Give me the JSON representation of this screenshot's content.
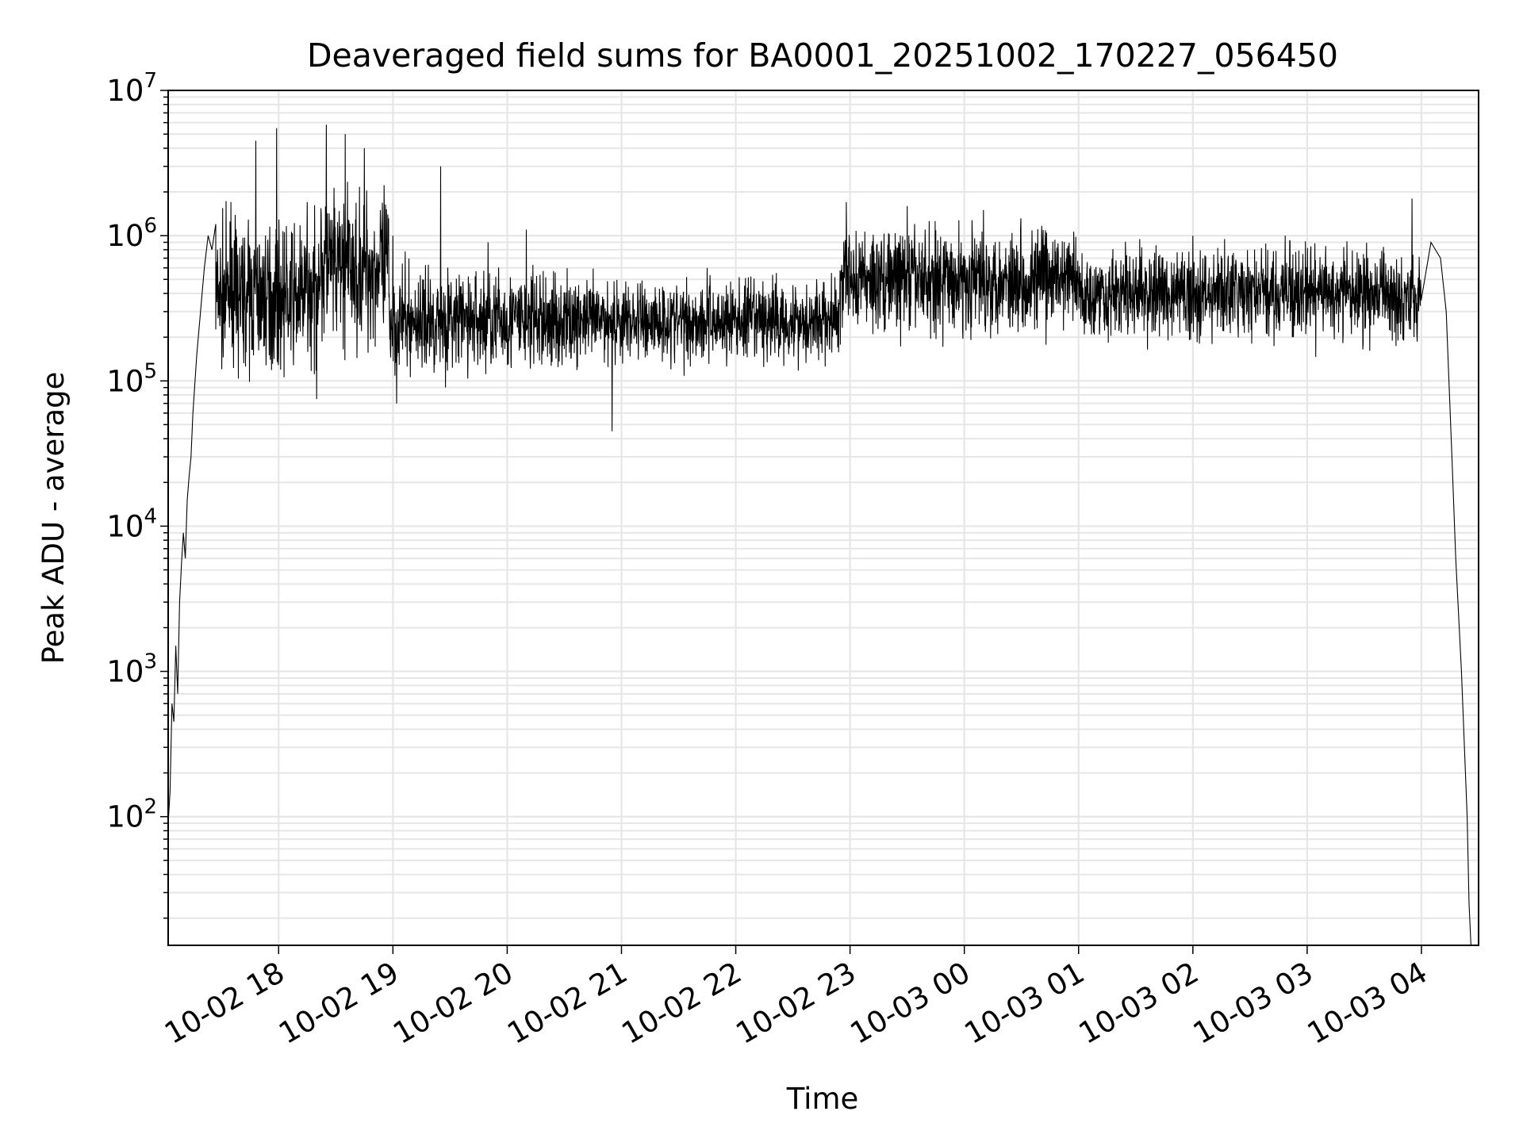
{
  "chart_data": {
    "type": "line",
    "title": "Deaveraged field sums for BA0001_20251002_170227_056450",
    "xlabel": "Time",
    "ylabel": "Peak ADU - average",
    "yscale": "log",
    "ylim": [
      13,
      10000000
    ],
    "xlim": [
      "2025-10-02 17:02",
      "2025-10-03 04:30"
    ],
    "grid": true,
    "line_color": "#000000",
    "grid_color": "#e6e6e6",
    "x_ticks": [
      {
        "t": "2025-10-02 18:00",
        "label": "10-02 18"
      },
      {
        "t": "2025-10-02 19:00",
        "label": "10-02 19"
      },
      {
        "t": "2025-10-02 20:00",
        "label": "10-02 20"
      },
      {
        "t": "2025-10-02 21:00",
        "label": "10-02 21"
      },
      {
        "t": "2025-10-02 22:00",
        "label": "10-02 22"
      },
      {
        "t": "2025-10-02 23:00",
        "label": "10-02 23"
      },
      {
        "t": "2025-10-03 00:00",
        "label": "10-03 00"
      },
      {
        "t": "2025-10-03 01:00",
        "label": "10-03 01"
      },
      {
        "t": "2025-10-03 02:00",
        "label": "10-03 02"
      },
      {
        "t": "2025-10-03 03:00",
        "label": "10-03 03"
      },
      {
        "t": "2025-10-03 04:00",
        "label": "10-03 04"
      }
    ],
    "y_ticks": [
      {
        "value": 100,
        "base": "10",
        "exp": "2"
      },
      {
        "value": 1000,
        "base": "10",
        "exp": "3"
      },
      {
        "value": 10000,
        "base": "10",
        "exp": "4"
      },
      {
        "value": 100000,
        "base": "10",
        "exp": "5"
      },
      {
        "value": 1000000,
        "base": "10",
        "exp": "6"
      },
      {
        "value": 10000000,
        "base": "10",
        "exp": "7"
      }
    ],
    "series": [
      {
        "points": [
          [
            "2025-10-02 17:02",
            90
          ],
          [
            "2025-10-02 17:03",
            150
          ],
          [
            "2025-10-02 17:04",
            600
          ],
          [
            "2025-10-02 17:05",
            450
          ],
          [
            "2025-10-02 17:06",
            1500
          ],
          [
            "2025-10-02 17:07",
            700
          ],
          [
            "2025-10-02 17:08",
            3000
          ],
          [
            "2025-10-02 17:09",
            5500
          ],
          [
            "2025-10-02 17:10",
            9000
          ],
          [
            "2025-10-02 17:11",
            6000
          ],
          [
            "2025-10-02 17:12",
            15000
          ],
          [
            "2025-10-02 17:13",
            22000
          ],
          [
            "2025-10-02 17:14",
            30000
          ],
          [
            "2025-10-02 17:15",
            60000
          ],
          [
            "2025-10-02 17:17",
            150000
          ],
          [
            "2025-10-02 17:19",
            300000
          ],
          [
            "2025-10-02 17:21",
            600000
          ],
          [
            "2025-10-02 17:23",
            1000000
          ],
          [
            "2025-10-02 17:25",
            800000
          ],
          [
            "2025-10-02 17:27",
            1200000
          ],
          [
            "2025-10-02 17:30",
            400000
          ],
          [
            "2025-10-02 17:35",
            1700000
          ],
          [
            "2025-10-02 17:40",
            250000
          ],
          [
            "2025-10-02 17:48",
            4500000
          ],
          [
            "2025-10-02 17:55",
            150000
          ],
          [
            "2025-10-02 17:59",
            5500000
          ],
          [
            "2025-10-02 18:05",
            200000
          ],
          [
            "2025-10-02 18:15",
            1700000
          ],
          [
            "2025-10-02 18:20",
            75000
          ],
          [
            "2025-10-02 18:25",
            5800000
          ],
          [
            "2025-10-02 18:30",
            300000
          ],
          [
            "2025-10-02 18:35",
            5000000
          ],
          [
            "2025-10-02 18:40",
            250000
          ],
          [
            "2025-10-02 18:45",
            4000000
          ],
          [
            "2025-10-02 18:50",
            700000
          ],
          [
            "2025-10-02 18:55",
            250000
          ],
          [
            "2025-10-02 19:00",
            1000000
          ],
          [
            "2025-10-02 19:02",
            70000
          ],
          [
            "2025-10-02 19:10",
            300000
          ],
          [
            "2025-10-02 19:20",
            200000
          ],
          [
            "2025-10-02 19:25",
            3000000
          ],
          [
            "2025-10-02 19:35",
            250000
          ],
          [
            "2025-10-02 19:50",
            900000
          ],
          [
            "2025-10-02 20:00",
            220000
          ],
          [
            "2025-10-02 20:10",
            1100000
          ],
          [
            "2025-10-02 20:20",
            250000
          ],
          [
            "2025-10-02 20:40",
            200000
          ],
          [
            "2025-10-02 20:55",
            45000
          ],
          [
            "2025-10-02 21:10",
            300000
          ],
          [
            "2025-10-02 21:30",
            250000
          ],
          [
            "2025-10-02 21:45",
            600000
          ],
          [
            "2025-10-02 22:00",
            280000
          ],
          [
            "2025-10-02 22:20",
            350000
          ],
          [
            "2025-10-02 22:40",
            330000
          ],
          [
            "2025-10-02 22:58",
            1700000
          ],
          [
            "2025-10-02 23:10",
            500000
          ],
          [
            "2025-10-02 23:30",
            1600000
          ],
          [
            "2025-10-02 23:50",
            500000
          ],
          [
            "2025-10-03 00:10",
            1500000
          ],
          [
            "2025-10-03 00:30",
            450000
          ],
          [
            "2025-10-03 01:00",
            450000
          ],
          [
            "2025-10-03 01:30",
            400000
          ],
          [
            "2025-10-03 02:00",
            1000000
          ],
          [
            "2025-10-03 02:30",
            400000
          ],
          [
            "2025-10-03 03:00",
            450000
          ],
          [
            "2025-10-03 03:30",
            400000
          ],
          [
            "2025-10-03 03:55",
            1800000
          ],
          [
            "2025-10-03 04:00",
            700000
          ],
          [
            "2025-10-03 04:05",
            900000
          ],
          [
            "2025-10-03 04:10",
            700000
          ],
          [
            "2025-10-03 04:13",
            300000
          ],
          [
            "2025-10-03 04:16",
            30000
          ],
          [
            "2025-10-03 04:18",
            6000
          ],
          [
            "2025-10-03 04:21",
            1000
          ],
          [
            "2025-10-03 04:24",
            100
          ],
          [
            "2025-10-03 04:25",
            25
          ],
          [
            "2025-10-03 04:26",
            13
          ]
        ],
        "noise": [
          {
            "t0": "2025-10-02 17:27",
            "t1": "2025-10-02 18:20",
            "median": 380000,
            "low": 90000,
            "high": 2000000
          },
          {
            "t0": "2025-10-02 18:20",
            "t1": "2025-10-02 18:58",
            "median": 600000,
            "low": 120000,
            "high": 4000000
          },
          {
            "t0": "2025-10-02 18:58",
            "t1": "2025-10-02 20:30",
            "median": 260000,
            "low": 90000,
            "high": 900000
          },
          {
            "t0": "2025-10-02 20:30",
            "t1": "2025-10-02 22:55",
            "median": 260000,
            "low": 90000,
            "high": 600000
          },
          {
            "t0": "2025-10-02 22:55",
            "t1": "2025-10-03 01:00",
            "median": 500000,
            "low": 150000,
            "high": 1600000
          },
          {
            "t0": "2025-10-03 01:00",
            "t1": "2025-10-03 04:00",
            "median": 400000,
            "low": 130000,
            "high": 1000000
          }
        ]
      }
    ]
  }
}
